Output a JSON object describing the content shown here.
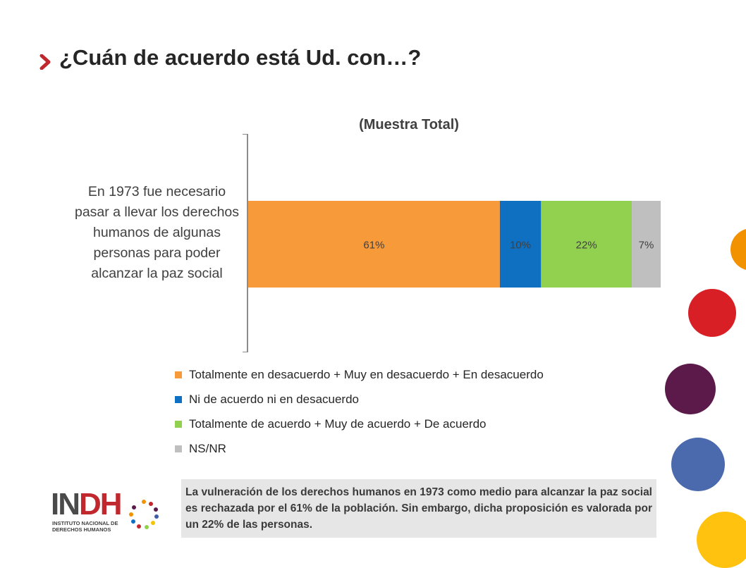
{
  "header": {
    "title": "¿Cuán de acuerdo está Ud. con…?"
  },
  "logo": {
    "brand": "INDH",
    "subtitle_line1": "INSTITUTO NACIONAL DE",
    "subtitle_line2": "DERECHOS HUMANOS"
  },
  "note": {
    "text": "La vulneración de los derechos humanos en 1973 como medio para alcanzar la paz social es rechazada por el 61% de la población. Sin embargo, dicha proposición es valorada por un 22% de las personas."
  },
  "colors": {
    "accent": "#c0282d",
    "orange": "#f79a3a",
    "blue": "#0f6fc0",
    "green": "#92d050",
    "gray": "#bfbfbf"
  },
  "chart_data": {
    "type": "bar",
    "orientation": "horizontal",
    "stacked": true,
    "title": "(Muestra Total)",
    "categories": [
      "En 1973 fue necesario pasar a llevar los derechos humanos de algunas personas para poder alcanzar la paz social"
    ],
    "series": [
      {
        "name": "Totalmente en desacuerdo + Muy en desacuerdo + En desacuerdo",
        "values": [
          61
        ],
        "label": "61%",
        "color": "#f79a3a"
      },
      {
        "name": "Ni de acuerdo ni en desacuerdo",
        "values": [
          10
        ],
        "label": "10%",
        "color": "#0f6fc0"
      },
      {
        "name": "Totalmente de acuerdo + Muy de acuerdo + De acuerdo",
        "values": [
          22
        ],
        "label": "22%",
        "color": "#92d050"
      },
      {
        "name": "NS/NR",
        "values": [
          7
        ],
        "label": "7%",
        "color": "#bfbfbf"
      }
    ],
    "xlim": [
      0,
      100
    ],
    "grid": false,
    "legend_position": "bottom"
  }
}
